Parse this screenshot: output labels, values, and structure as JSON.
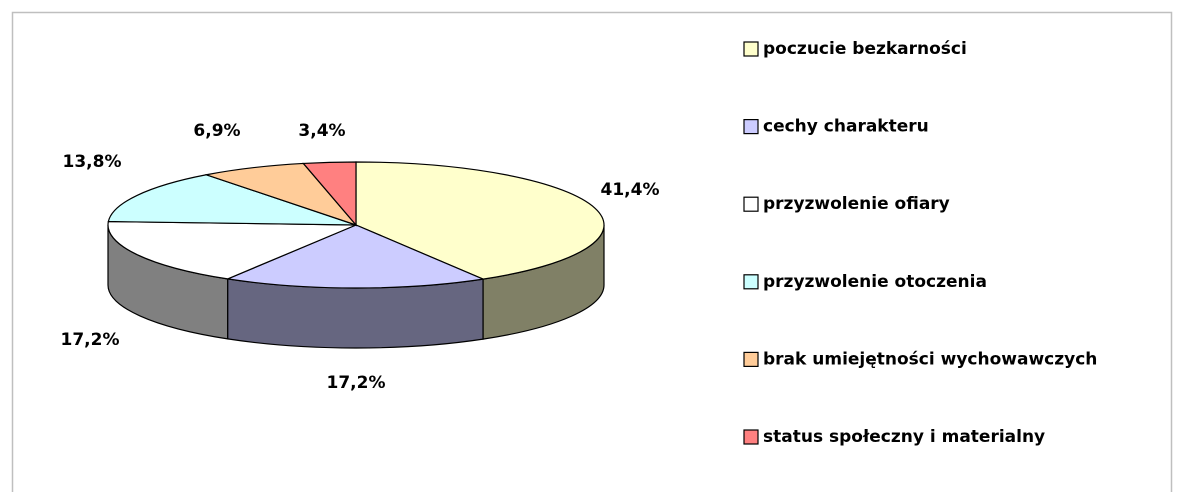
{
  "chart_data": {
    "type": "pie3d",
    "categories": [
      "poczucie bezkarności",
      "cechy charakteru",
      "przyzwolenie ofiary",
      "przyzwolenie otoczenia",
      "brak umiejętności wychowawczych",
      "status społeczny i materialny"
    ],
    "values": [
      41.4,
      17.2,
      17.2,
      13.8,
      6.9,
      3.4
    ],
    "value_labels": [
      "41,4%",
      "17,2%",
      "17,2%",
      "13,8%",
      "6,9%",
      "3,4%"
    ],
    "colors": [
      "#ffffcc",
      "#ccccff",
      "#ffffff",
      "#ccffff",
      "#ffcc99",
      "#ff8080"
    ],
    "legend": "right"
  }
}
